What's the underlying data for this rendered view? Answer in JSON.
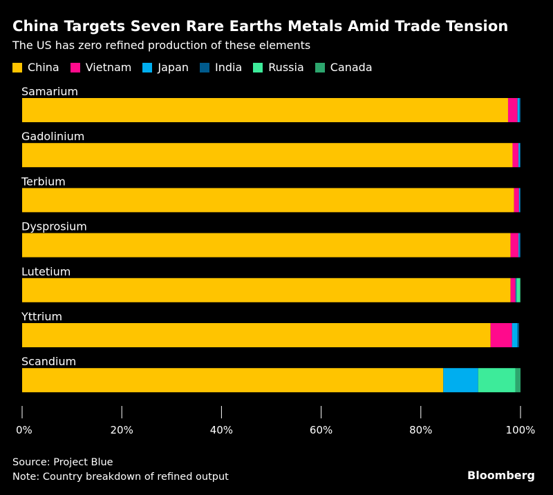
{
  "chart_data": {
    "type": "bar",
    "orientation": "horizontal",
    "stacked": true,
    "title": "China Targets Seven Rare Earths Metals Amid Trade Tension",
    "subtitle": "The US has zero refined production of these elements",
    "categories": [
      "Samarium",
      "Gadolinium",
      "Terbium",
      "Dysprosium",
      "Lutetium",
      "Yttrium",
      "Scandium"
    ],
    "series": [
      {
        "name": "China",
        "color": "#FFC400",
        "values": [
          97.5,
          98.4,
          98.7,
          98.0,
          98.0,
          94.0,
          84.5
        ]
      },
      {
        "name": "Vietnam",
        "color": "#FF0A8C",
        "values": [
          1.9,
          1.2,
          1.0,
          1.6,
          1.0,
          4.3,
          0
        ]
      },
      {
        "name": "Japan",
        "color": "#00AEEF",
        "values": [
          0.4,
          0.3,
          0.2,
          0.2,
          0.1,
          1.1,
          7.0
        ]
      },
      {
        "name": "India",
        "color": "#005A8C",
        "values": [
          0.2,
          0.1,
          0.1,
          0.2,
          0.1,
          0.3,
          0
        ]
      },
      {
        "name": "Russia",
        "color": "#3DEB9A",
        "values": [
          0,
          0,
          0,
          0,
          0.7,
          0,
          7.5
        ]
      },
      {
        "name": "Canada",
        "color": "#2DA66E",
        "values": [
          0,
          0,
          0,
          0,
          0.1,
          0,
          1.0
        ]
      }
    ],
    "xlim": [
      0,
      100
    ],
    "xticks": [
      "0%",
      "20%",
      "40%",
      "60%",
      "80%",
      "100%"
    ],
    "grid": false,
    "legend": "top-left"
  },
  "footer": {
    "source": "Source: Project Blue",
    "note": "Note: Country breakdown of refined output",
    "brand": "Bloomberg"
  }
}
